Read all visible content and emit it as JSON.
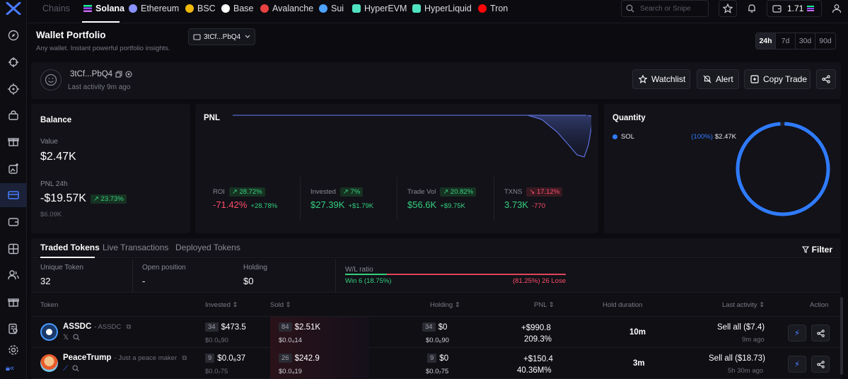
{
  "topbar": {
    "chains_label": "Chains",
    "chains": [
      {
        "label": "Solana",
        "color": "#9945ff"
      },
      {
        "label": "Ethereum",
        "color": "#8a92ff"
      },
      {
        "label": "BSC",
        "color": "#f0b90b"
      },
      {
        "label": "Base",
        "color": "#ffffff"
      },
      {
        "label": "Avalanche",
        "color": "#e84142"
      },
      {
        "label": "Sui",
        "color": "#4da2ff"
      },
      {
        "label": "HyperEVM",
        "color": "#50e3c2"
      },
      {
        "label": "HyperLiquid",
        "color": "#50e3c2"
      },
      {
        "label": "Tron",
        "color": "#ff060a"
      }
    ],
    "search_placeholder": "Search or Snipe",
    "wallet_balance": "1.71"
  },
  "header": {
    "title": "Wallet Portfolio",
    "subtitle": "Any wallet. Instant powerful portfolio insights.",
    "address_dropdown": "3tCf...PbQ4",
    "timeframes": [
      "24h",
      "7d",
      "30d",
      "90d"
    ],
    "selected_timeframe": "24h"
  },
  "profile": {
    "address": "3tCf...PbQ4",
    "last_activity": "Last activity 9m ago",
    "watchlist_label": "Watchlist",
    "alert_label": "Alert",
    "copy_trade_label": "Copy Trade"
  },
  "balance": {
    "title": "Balance",
    "value_label": "Value",
    "value": "$2.47K",
    "pnl_label": "PNL 24h",
    "pnl_value": "-$19.57K",
    "pnl_pct": "23.73%",
    "pnl_sub": "$6.09K"
  },
  "pnl": {
    "title": "PNL",
    "stats": [
      {
        "label": "ROI",
        "pill": "28.72%",
        "pill_dir": "up",
        "value": "-71.42%",
        "value_color": "red",
        "sub": "+28.78%",
        "sub_color": "green"
      },
      {
        "label": "Invested",
        "pill": "7%",
        "pill_dir": "up",
        "value": "$27.39K",
        "value_color": "green",
        "sub": "+$1.79K",
        "sub_color": "green"
      },
      {
        "label": "Trade Vol",
        "pill": "20.82%",
        "pill_dir": "up",
        "value": "$56.6K",
        "value_color": "green",
        "sub": "+$9.75K",
        "sub_color": "green"
      },
      {
        "label": "TXNS",
        "pill": "17.12%",
        "pill_dir": "down",
        "value": "3.73K",
        "value_color": "green",
        "sub": "-770",
        "sub_color": "red"
      }
    ]
  },
  "quantity": {
    "title": "Quantity",
    "legend": {
      "symbol": "SOL",
      "pct": "(100%)",
      "value": "$2.47K"
    },
    "share": 1.0,
    "color": "#2f7bff"
  },
  "tabs": {
    "items": [
      "Traded Tokens",
      "Live Transactions",
      "Deployed Tokens"
    ],
    "filter_label": "Filter"
  },
  "summary": {
    "unique_token_label": "Unique Token",
    "unique_token": "32",
    "open_position_label": "Open position",
    "open_position": "-",
    "holding_label": "Holding",
    "holding": "$0",
    "wl_label": "W/L ratio",
    "win_text": "Win 6 (18.75%)",
    "lose_text": "(81.25%) 26 Lose",
    "win_fraction": 0.1875
  },
  "table": {
    "headers": {
      "token": "Token",
      "invested": "Invested",
      "sold": "Sold",
      "holding": "Holding",
      "pnl": "PNL",
      "hold_duration": "Hold duration",
      "last_activity": "Last activity",
      "action": "Action"
    },
    "rows": [
      {
        "name": "ASSDC",
        "desc": "- ASSDC",
        "invested_cnt": "34",
        "invested": "$473.5",
        "invested_sub": "$0.0₆90",
        "sold_cnt": "84",
        "sold": "$2.51K",
        "sold_sub": "$0.0₄14",
        "holding_cnt": "34",
        "holding": "$0",
        "holding_sub": "$0.0₆90",
        "pnl": "+$990.8",
        "pnl_pct": "209.3%",
        "hold_duration": "10m",
        "last_activity": "Sell all ($7.4)",
        "last_activity_sub": "9m ago"
      },
      {
        "name": "PeaceTrump",
        "desc": "- Just a peace maker",
        "invested_cnt": "9",
        "invested": "$0.0₆37",
        "invested_sub": "$0.0₇75",
        "sold_cnt": "26",
        "sold": "$242.9",
        "sold_sub": "$0.0₄19",
        "holding_cnt": "9",
        "holding": "$0",
        "holding_sub": "$0.0₇75",
        "pnl": "+$150.4",
        "pnl_pct": "40.36M%",
        "hold_duration": "3m",
        "last_activity": "Sell all ($18.73)",
        "last_activity_sub": "5h 30m ago"
      }
    ]
  }
}
